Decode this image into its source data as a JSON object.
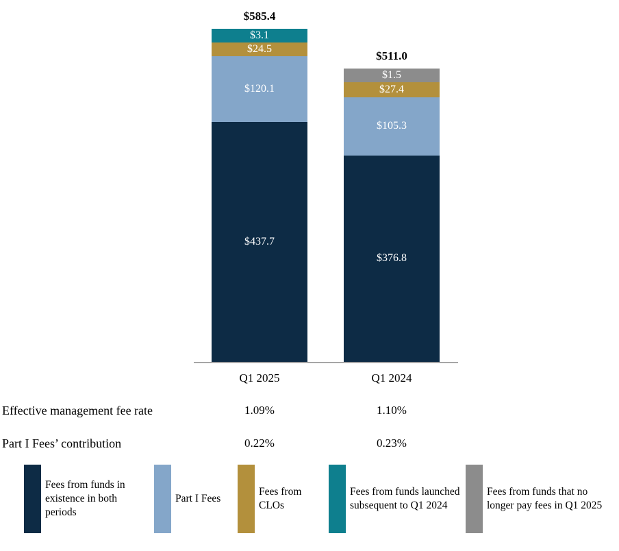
{
  "chart_data": {
    "type": "bar",
    "stacked": true,
    "title": "",
    "xlabel": "",
    "ylabel": "",
    "categories": [
      "Q1 2025",
      "Q1 2024"
    ],
    "totals": [
      "$585.4",
      "$511.0"
    ],
    "series": [
      {
        "name": "Fees from funds in existence in both periods",
        "color": "#0d2b45",
        "values": [
          437.7,
          376.8
        ],
        "labels": [
          "$437.7",
          "$376.8"
        ]
      },
      {
        "name": "Part I Fees",
        "color": "#84a6c9",
        "values": [
          120.1,
          105.3
        ],
        "labels": [
          "$120.1",
          "$105.3"
        ]
      },
      {
        "name": "Fees from CLOs",
        "color": "#b3903c",
        "values": [
          24.5,
          27.4
        ],
        "labels": [
          "$24.5",
          "$27.4"
        ]
      },
      {
        "name": "Fees from funds launched subsequent to Q1 2024",
        "color": "#0e7f8e",
        "values": [
          3.1,
          0
        ],
        "labels": [
          "$3.1",
          null
        ]
      },
      {
        "name": "Fees from funds that no longer pay fees in Q1 2025",
        "color": "#8c8c8c",
        "values": [
          0,
          1.5
        ],
        "labels": [
          null,
          "$1.5"
        ]
      }
    ],
    "legend_position": "bottom",
    "grid": false
  },
  "stats": {
    "rows": [
      {
        "label": "Effective management fee rate",
        "values": [
          "1.09%",
          "1.10%"
        ]
      },
      {
        "label": "Part I Fees’ contribution",
        "values": [
          "0.22%",
          "0.23%"
        ]
      }
    ]
  },
  "legend": {
    "items": [
      {
        "label": "Fees from funds in existence in both periods",
        "color": "#0d2b45"
      },
      {
        "label": "Part I Fees",
        "color": "#84a6c9"
      },
      {
        "label": "Fees from CLOs",
        "color": "#b3903c"
      },
      {
        "label": "Fees from funds launched subsequent to Q1 2024",
        "color": "#0e7f8e"
      },
      {
        "label": "Fees from funds that no longer pay fees in Q1 2025",
        "color": "#8c8c8c"
      }
    ]
  },
  "colors": {
    "axis_line": "#a6a6a6",
    "background": "#ffffff",
    "segment_text": "#ffffff"
  }
}
